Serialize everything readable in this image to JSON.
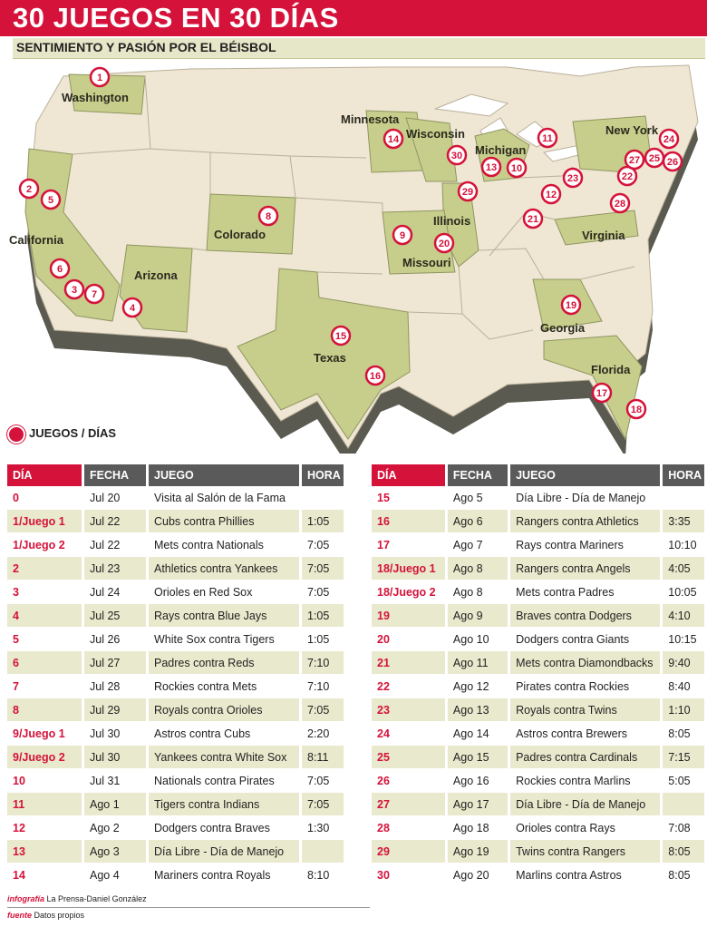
{
  "header": {
    "title": "30 JUEGOS EN 30 DÍAS",
    "subtitle": "SENTIMIENTO Y PASIÓN POR EL BÉISBOL"
  },
  "colors": {
    "accent": "#d5123a",
    "highlight_state": "#c7ce8c",
    "land": "#efe7d3",
    "table_header": "#5a5a5a",
    "row_alt": "#e9e9cd"
  },
  "map": {
    "state_labels": [
      "Washington",
      "California",
      "Arizona",
      "Colorado",
      "Texas",
      "Minnesota",
      "Wisconsin",
      "Michigan",
      "Illinois",
      "Missouri",
      "New York",
      "Virginia",
      "Georgia",
      "Florida"
    ],
    "markers": [
      "1",
      "2",
      "3",
      "4",
      "5",
      "6",
      "7",
      "8",
      "9",
      "10",
      "11",
      "12",
      "13",
      "14",
      "15",
      "16",
      "17",
      "18",
      "19",
      "20",
      "21",
      "22",
      "23",
      "24",
      "25",
      "26",
      "27",
      "28",
      "29",
      "30"
    ]
  },
  "legend": {
    "label": "JUEGOS / DÍAS",
    "icon": "red-circle-icon"
  },
  "schedule": {
    "headers": {
      "dia": "DÍA",
      "fecha": "FECHA",
      "juego": "JUEGO",
      "hora": "HORA"
    },
    "left": [
      {
        "dia": "0",
        "fecha": "Jul 20",
        "juego": "Visita al Salón de la Fama",
        "hora": ""
      },
      {
        "dia": "1/Juego 1",
        "fecha": "Jul 22",
        "juego": "Cubs contra Phillies",
        "hora": "1:05"
      },
      {
        "dia": "1/Juego 2",
        "fecha": "Jul 22",
        "juego": "Mets contra Nationals",
        "hora": "7:05"
      },
      {
        "dia": "2",
        "fecha": "Jul 23",
        "juego": "Athletics contra Yankees",
        "hora": "7:05"
      },
      {
        "dia": "3",
        "fecha": "Jul 24",
        "juego": "Orioles en Red Sox",
        "hora": "7:05"
      },
      {
        "dia": "4",
        "fecha": "Jul 25",
        "juego": "Rays contra Blue Jays",
        "hora": "1:05"
      },
      {
        "dia": "5",
        "fecha": "Jul 26",
        "juego": "White Sox contra Tigers",
        "hora": "1:05"
      },
      {
        "dia": "6",
        "fecha": "Jul 27",
        "juego": "Padres contra Reds",
        "hora": "7:10"
      },
      {
        "dia": "7",
        "fecha": "Jul 28",
        "juego": "Rockies contra Mets",
        "hora": "7:10"
      },
      {
        "dia": "8",
        "fecha": "Jul 29",
        "juego": "Royals contra Orioles",
        "hora": "7:05"
      },
      {
        "dia": "9/Juego 1",
        "fecha": "Jul 30",
        "juego": "Astros contra Cubs",
        "hora": "2:20"
      },
      {
        "dia": "9/Juego 2",
        "fecha": "Jul 30",
        "juego": "Yankees contra White Sox",
        "hora": "8:11"
      },
      {
        "dia": "10",
        "fecha": "Jul 31",
        "juego": "Nationals contra Pirates",
        "hora": "7:05"
      },
      {
        "dia": "11",
        "fecha": "Ago 1",
        "juego": "Tigers contra Indians",
        "hora": "7:05"
      },
      {
        "dia": "12",
        "fecha": "Ago 2",
        "juego": "Dodgers contra Braves",
        "hora": "1:30"
      },
      {
        "dia": "13",
        "fecha": "Ago 3",
        "juego": "Día Libre - Día de Manejo",
        "hora": ""
      },
      {
        "dia": "14",
        "fecha": "Ago 4",
        "juego": "Mariners contra Royals",
        "hora": "8:10"
      }
    ],
    "right": [
      {
        "dia": "15",
        "fecha": "Ago 5",
        "juego": "Día Libre - Día de Manejo",
        "hora": ""
      },
      {
        "dia": "16",
        "fecha": "Ago 6",
        "juego": "Rangers contra Athletics",
        "hora": "3:35"
      },
      {
        "dia": "17",
        "fecha": "Ago 7",
        "juego": "Rays contra Mariners",
        "hora": "10:10"
      },
      {
        "dia": "18/Juego 1",
        "fecha": "Ago 8",
        "juego": "Rangers contra Angels",
        "hora": "4:05"
      },
      {
        "dia": "18/Juego 2",
        "fecha": "Ago 8",
        "juego": "Mets contra Padres",
        "hora": "10:05"
      },
      {
        "dia": "19",
        "fecha": "Ago 9",
        "juego": "Braves contra Dodgers",
        "hora": "4:10"
      },
      {
        "dia": "20",
        "fecha": "Ago 10",
        "juego": "Dodgers contra Giants",
        "hora": "10:15"
      },
      {
        "dia": "21",
        "fecha": "Ago 11",
        "juego": "Mets contra Diamondbacks",
        "hora": "9:40"
      },
      {
        "dia": "22",
        "fecha": "Ago 12",
        "juego": "Pirates contra Rockies",
        "hora": "8:40"
      },
      {
        "dia": "23",
        "fecha": "Ago 13",
        "juego": "Royals contra Twins",
        "hora": "1:10"
      },
      {
        "dia": "24",
        "fecha": "Ago 14",
        "juego": "Astros contra Brewers",
        "hora": "8:05"
      },
      {
        "dia": "25",
        "fecha": "Ago 15",
        "juego": "Padres contra Cardinals",
        "hora": "7:15"
      },
      {
        "dia": "26",
        "fecha": "Ago 16",
        "juego": "Rockies contra Marlins",
        "hora": "5:05"
      },
      {
        "dia": "27",
        "fecha": "Ago 17",
        "juego": "Día Libre - Día de Manejo",
        "hora": ""
      },
      {
        "dia": "28",
        "fecha": "Ago 18",
        "juego": "Orioles contra Rays",
        "hora": "7:08"
      },
      {
        "dia": "29",
        "fecha": "Ago 19",
        "juego": "Twins contra Rangers",
        "hora": "8:05"
      },
      {
        "dia": "30",
        "fecha": "Ago 20",
        "juego": "Marlins contra Astros",
        "hora": "8:05"
      }
    ]
  },
  "credits": {
    "infografia_label": "infografía",
    "infografia_value": "La Prensa-Daniel González",
    "fuente_label": "fuente",
    "fuente_value": "Datos propios"
  }
}
